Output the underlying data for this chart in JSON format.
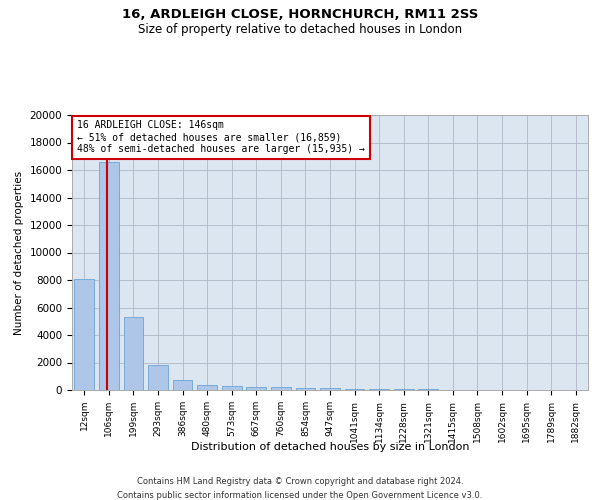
{
  "title1": "16, ARDLEIGH CLOSE, HORNCHURCH, RM11 2SS",
  "title2": "Size of property relative to detached houses in London",
  "xlabel": "Distribution of detached houses by size in London",
  "ylabel": "Number of detached properties",
  "categories": [
    "12sqm",
    "106sqm",
    "199sqm",
    "293sqm",
    "386sqm",
    "480sqm",
    "573sqm",
    "667sqm",
    "760sqm",
    "854sqm",
    "947sqm",
    "1041sqm",
    "1134sqm",
    "1228sqm",
    "1321sqm",
    "1415sqm",
    "1508sqm",
    "1602sqm",
    "1695sqm",
    "1789sqm",
    "1882sqm"
  ],
  "values": [
    8100,
    16600,
    5300,
    1850,
    700,
    380,
    320,
    230,
    200,
    160,
    120,
    90,
    70,
    55,
    45,
    35,
    28,
    22,
    18,
    14,
    10
  ],
  "bar_color": "#aec6e8",
  "bar_edge_color": "#5b9bd5",
  "bar_width": 0.8,
  "vline_color": "#cc0000",
  "annotation_text": "16 ARDLEIGH CLOSE: 146sqm\n← 51% of detached houses are smaller (16,859)\n48% of semi-detached houses are larger (15,935) →",
  "annotation_box_color": "#ffffff",
  "annotation_box_edge": "#cc0000",
  "ylim": [
    0,
    20000
  ],
  "yticks": [
    0,
    2000,
    4000,
    6000,
    8000,
    10000,
    12000,
    14000,
    16000,
    18000,
    20000
  ],
  "grid_color": "#b0b8c8",
  "bg_color": "#dce6f0",
  "footer1": "Contains HM Land Registry data © Crown copyright and database right 2024.",
  "footer2": "Contains public sector information licensed under the Open Government Licence v3.0."
}
